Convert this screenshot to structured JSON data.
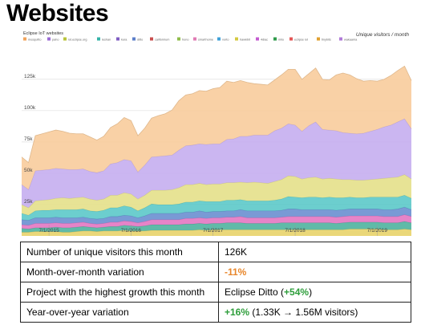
{
  "page": {
    "title": "Websites"
  },
  "chart_data": {
    "type": "area",
    "stacked": true,
    "title": "Eclipse IoT websites",
    "subtitle": "Unique visitors / month",
    "xlabel": "",
    "ylabel": "",
    "ylim": [
      0,
      155000
    ],
    "yticks": [
      25000,
      50000,
      75000,
      100000,
      125000
    ],
    "ytick_labels": [
      "25k",
      "50k",
      "75k",
      "100k",
      "125k"
    ],
    "xtick_labels": [
      "7/1/2015",
      "7/1/2016",
      "7/1/2017",
      "7/1/2018",
      "7/1/2019"
    ],
    "xtick_index": [
      4,
      16,
      28,
      40,
      52
    ],
    "grid": true,
    "legend_position": "top-left",
    "legend_labels": [
      "mosquitto",
      "paho",
      "iot.eclipse.org",
      "leshan",
      "kura",
      "ditto",
      "californium",
      "hono",
      "smarthome",
      "vorto",
      "hawkbit",
      "4diac",
      "milo",
      "eclipse iot",
      "tinybits",
      "wakaama"
    ],
    "series": [
      {
        "color": "#e8d36a",
        "values": [
          3000,
          3000,
          3500,
          3500,
          3500,
          3500,
          3000,
          3000,
          3500,
          4000,
          4000,
          3500,
          4000,
          4000,
          4000,
          4500,
          4000,
          4000,
          4000,
          4500,
          4500,
          4500,
          4500,
          4500,
          4500,
          4500,
          5000,
          4500,
          5000,
          5000,
          5000,
          5000,
          5000,
          5000,
          5000,
          5000,
          5000,
          5000,
          5000,
          5000,
          5000,
          5000,
          5000,
          5000,
          5000,
          5000,
          5000,
          5000,
          5500,
          5500,
          5500,
          5500,
          5500,
          5000,
          5000,
          5000,
          5500,
          5000
        ]
      },
      {
        "color": "#4fb39e",
        "values": [
          3000,
          2500,
          3000,
          3000,
          3000,
          3500,
          3500,
          3500,
          3500,
          3500,
          3000,
          3000,
          3000,
          3500,
          3500,
          4000,
          4000,
          3500,
          4000,
          4500,
          4500,
          4500,
          4500,
          4500,
          5000,
          5000,
          5000,
          5000,
          5000,
          5000,
          5500,
          5500,
          5500,
          5000,
          5000,
          5000,
          5000,
          5000,
          5500,
          5500,
          5500,
          5500,
          5500,
          5500,
          5500,
          5500,
          5000,
          5500,
          5500,
          5500,
          5500,
          5500,
          5500,
          5500,
          5500,
          5500,
          6000,
          5500
        ]
      },
      {
        "color": "#e377c2",
        "values": [
          3000,
          3000,
          3500,
          3500,
          3500,
          3500,
          3500,
          3500,
          3500,
          3500,
          3000,
          3000,
          3000,
          3500,
          3500,
          3500,
          3500,
          3000,
          3500,
          4000,
          4000,
          4000,
          4000,
          4000,
          4500,
          4500,
          4500,
          4500,
          4500,
          4500,
          4500,
          4500,
          5000,
          4500,
          4500,
          4500,
          4500,
          4500,
          4500,
          5000,
          5000,
          5000,
          5000,
          5000,
          5000,
          5000,
          5000,
          5000,
          5000,
          5000,
          5000,
          5000,
          5000,
          5000,
          5000,
          5000,
          5500,
          5000
        ]
      },
      {
        "color": "#6a8fd0",
        "values": [
          4000,
          4000,
          4500,
          4500,
          4500,
          4500,
          4500,
          4500,
          4000,
          4000,
          4000,
          4000,
          4000,
          4500,
          4500,
          4500,
          4500,
          4000,
          4500,
          5000,
          5000,
          5000,
          5000,
          5000,
          5000,
          5000,
          5500,
          5000,
          5000,
          5000,
          5000,
          5000,
          5500,
          5500,
          5500,
          5500,
          5500,
          5500,
          5500,
          6000,
          6000,
          5500,
          5500,
          5500,
          5500,
          5500,
          5500,
          5500,
          5500,
          5500,
          5500,
          5500,
          5500,
          5500,
          5500,
          6000,
          6000,
          5500
        ]
      },
      {
        "color": "#5cc9c9",
        "values": [
          5000,
          4000,
          5500,
          6000,
          6000,
          6000,
          6500,
          6500,
          6500,
          6500,
          6000,
          6000,
          6500,
          7000,
          7000,
          7500,
          7000,
          5500,
          6500,
          7500,
          7000,
          7000,
          7000,
          7500,
          8000,
          8000,
          8000,
          8500,
          8000,
          8000,
          8500,
          8500,
          8000,
          8000,
          8000,
          8000,
          8000,
          8500,
          9000,
          10000,
          9500,
          9500,
          10000,
          10000,
          9500,
          10000,
          10000,
          9500,
          9500,
          9000,
          9000,
          9500,
          9500,
          10000,
          10000,
          9500,
          9500,
          9000
        ]
      },
      {
        "color": "#e4e08a",
        "values": [
          7000,
          6000,
          8000,
          8000,
          8500,
          9000,
          9500,
          9000,
          9500,
          9500,
          9500,
          9000,
          9000,
          10000,
          10000,
          10500,
          10500,
          9500,
          10000,
          11000,
          11500,
          11500,
          12000,
          13000,
          14000,
          14000,
          14000,
          13500,
          14000,
          14000,
          14000,
          14000,
          14000,
          14500,
          15000,
          14500,
          14000,
          15000,
          15500,
          16500,
          16500,
          15000,
          15500,
          16000,
          15000,
          15000,
          15000,
          14500,
          14000,
          14000,
          14000,
          14000,
          14500,
          15000,
          15500,
          16000,
          16500,
          15500
        ]
      },
      {
        "color": "#c5aef0",
        "values": [
          16000,
          14500,
          24000,
          24000,
          24000,
          24000,
          23000,
          23000,
          22500,
          22500,
          22000,
          22000,
          22500,
          25000,
          26000,
          26500,
          26500,
          21500,
          24000,
          26500,
          27000,
          27500,
          27500,
          30000,
          31000,
          31500,
          31500,
          32000,
          32000,
          32000,
          34500,
          35000,
          36500,
          37000,
          37500,
          38000,
          38500,
          40500,
          41000,
          41500,
          41000,
          38000,
          41500,
          44000,
          39500,
          38500,
          38500,
          37500,
          37000,
          37000,
          37500,
          38500,
          39500,
          41000,
          42000,
          44000,
          44500,
          40000
        ]
      },
      {
        "color": "#f8cc9c",
        "values": [
          22000,
          21500,
          28000,
          29000,
          30000,
          30500,
          30000,
          29000,
          28500,
          28000,
          27500,
          26000,
          27500,
          29000,
          31000,
          33500,
          32000,
          29000,
          29500,
          31000,
          32500,
          33500,
          36000,
          39500,
          40500,
          41000,
          42500,
          42500,
          44000,
          45000,
          46500,
          45000,
          44500,
          43000,
          41000,
          40500,
          40000,
          40500,
          42500,
          43500,
          44500,
          41500,
          41500,
          43000,
          40000,
          40000,
          44500,
          47500,
          46500,
          44000,
          41500,
          40500,
          38500,
          38000,
          39500,
          41000,
          42000,
          38500
        ]
      }
    ]
  },
  "stats": [
    {
      "label": "Number of unique visitors this month",
      "value": "126K"
    },
    {
      "label": "Month-over-month variation",
      "value_neg": "-11%"
    },
    {
      "label": "Project with the highest growth this month",
      "value": "Eclipse Ditto (",
      "value_pos": "+54%",
      "value_suffix": ")"
    },
    {
      "label": "Year-over-year variation",
      "value_pos": "+16%",
      "value": " (1.33K → 1.56M visitors)"
    }
  ]
}
